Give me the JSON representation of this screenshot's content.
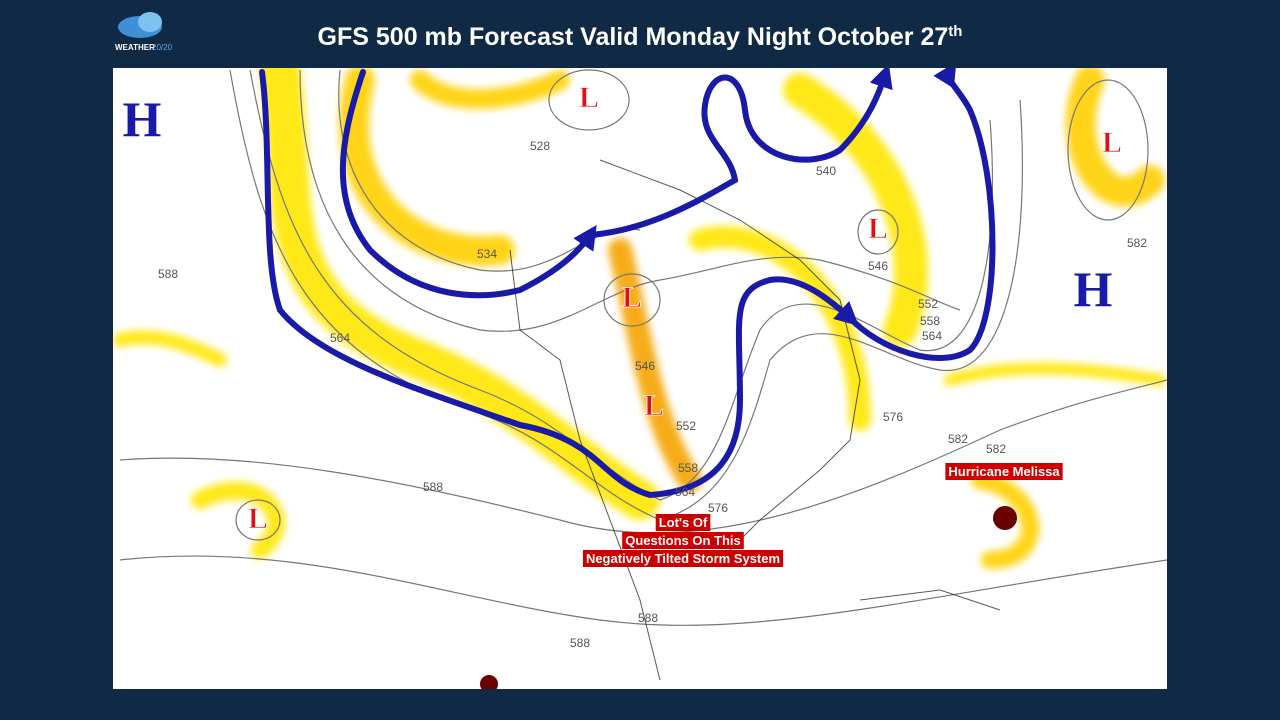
{
  "header": {
    "logo_word": "WEATHER",
    "logo_number": "20/20",
    "title": "GFS 500 mb Forecast Valid Monday Night October 27",
    "title_suffix": "th"
  },
  "map": {
    "pressure_centers": [
      "H",
      "H",
      "L",
      "L",
      "L",
      "L",
      "L",
      "L"
    ],
    "contour_labels": [
      "528",
      "534",
      "588",
      "564",
      "540",
      "546",
      "552",
      "558",
      "564",
      "582",
      "546",
      "552",
      "558",
      "564",
      "576",
      "576",
      "582",
      "582",
      "588",
      "588",
      "588"
    ],
    "annotations": [
      {
        "lines": [
          "Hurricane Melissa"
        ]
      },
      {
        "lines": [
          "Lot's Of",
          "Questions On This",
          "Negatively Tilted Storm System"
        ]
      }
    ]
  }
}
